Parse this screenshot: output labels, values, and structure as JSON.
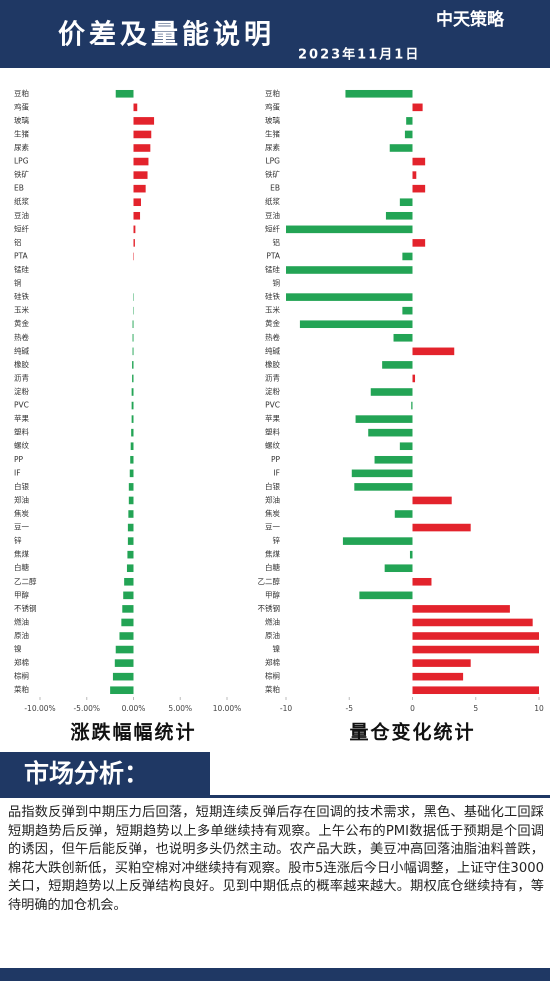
{
  "header": {
    "title": "价差及量能说明",
    "date": "2023年11月1日",
    "logo": "中天策略"
  },
  "chart_data": [
    {
      "type": "hbar",
      "title": "涨跌幅幅统计",
      "categories": [
        "豆粕",
        "鸡蛋",
        "玻璃",
        "生猪",
        "尿素",
        "LPG",
        "铁矿",
        "EB",
        "纸浆",
        "豆油",
        "短纤",
        "铝",
        "PTA",
        "锰硅",
        "铜",
        "硅铁",
        "玉米",
        "黄金",
        "热卷",
        "纯碱",
        "橡胶",
        "沥青",
        "淀粉",
        "PVC",
        "苹果",
        "塑料",
        "螺纹",
        "PP",
        "IF",
        "白银",
        "郑油",
        "焦炭",
        "豆一",
        "锌",
        "焦煤",
        "白糖",
        "乙二醇",
        "甲醇",
        "不锈钢",
        "燃油",
        "原油",
        "镍",
        "郑棉",
        "棕榈",
        "菜粕"
      ],
      "values": [
        -1.9,
        0.4,
        2.2,
        1.9,
        1.8,
        1.6,
        1.5,
        1.3,
        0.8,
        0.7,
        0.2,
        0.15,
        0.05,
        0,
        0,
        -0.05,
        -0.05,
        -0.1,
        -0.1,
        -0.1,
        -0.15,
        -0.15,
        -0.2,
        -0.2,
        -0.2,
        -0.25,
        -0.3,
        -0.35,
        -0.4,
        -0.5,
        -0.5,
        -0.55,
        -0.6,
        -0.6,
        -0.65,
        -0.7,
        -1.0,
        -1.1,
        -1.2,
        -1.3,
        -1.5,
        -1.9,
        -2.0,
        -2.2,
        -2.5
      ],
      "positive_color": "#e3232c",
      "negative_color": "#23a455",
      "xlim": [
        -10,
        10
      ],
      "xticks": [
        {
          "value": -10,
          "label": "-10.00%"
        },
        {
          "value": -5,
          "label": "-5.00%"
        },
        {
          "value": 0,
          "label": "0.00%"
        },
        {
          "value": 5,
          "label": "5.00%"
        },
        {
          "value": 10,
          "label": "10.00%"
        }
      ]
    },
    {
      "type": "hbar",
      "title": "量仓变化统计",
      "categories": [
        "豆粕",
        "鸡蛋",
        "玻璃",
        "生猪",
        "尿素",
        "LPG",
        "铁矿",
        "EB",
        "纸浆",
        "豆油",
        "短纤",
        "铝",
        "PTA",
        "锰硅",
        "铜",
        "硅铁",
        "玉米",
        "黄金",
        "热卷",
        "纯碱",
        "橡胶",
        "沥青",
        "淀粉",
        "PVC",
        "苹果",
        "塑料",
        "螺纹",
        "PP",
        "IF",
        "白银",
        "郑油",
        "焦炭",
        "豆一",
        "锌",
        "焦煤",
        "白糖",
        "乙二醇",
        "甲醇",
        "不锈钢",
        "燃油",
        "原油",
        "镍",
        "郑棉",
        "棕榈",
        "菜粕"
      ],
      "values": [
        -5.3,
        0.8,
        -0.5,
        -0.6,
        -1.8,
        1.0,
        0.3,
        1.0,
        -1.0,
        -2.1,
        -10,
        1.0,
        -0.8,
        -10,
        0,
        -10,
        -0.8,
        -8.9,
        -1.5,
        3.3,
        -2.4,
        0.2,
        -3.3,
        -0.1,
        -4.5,
        -3.5,
        -1.0,
        -3.0,
        -4.8,
        -4.6,
        3.1,
        -1.4,
        4.6,
        -5.5,
        -0.2,
        -2.2,
        1.5,
        -4.2,
        7.7,
        9.5,
        10,
        10,
        4.6,
        4.0,
        10
      ],
      "positive_color": "#e3232c",
      "negative_color": "#23a455",
      "xlim": [
        -10,
        10
      ],
      "xticks": [
        -10,
        -5,
        0,
        5,
        10
      ]
    }
  ],
  "analysis": {
    "heading": "市场分析：",
    "text": "品指数反弹到中期压力后回落，短期连续反弹后存在回调的技术需求，黑色、基础化工回踩短期趋势后反弹，短期趋势以上多单继续持有观察。上午公布的PMI数据低于预期是个回调的诱因，但午后能反弹，也说明多头仍然主动。农产品大跌，美豆冲高回落油脂油料普跌，棉花大跌创新低，买粕空棉对冲继续持有观察。股市5连涨后今日小幅调整，上证守住3000关口，短期趋势以上反弹结构良好。见到中期低点的概率越来越大。期权底仓继续持有，等待明确的加仓机会。"
  }
}
